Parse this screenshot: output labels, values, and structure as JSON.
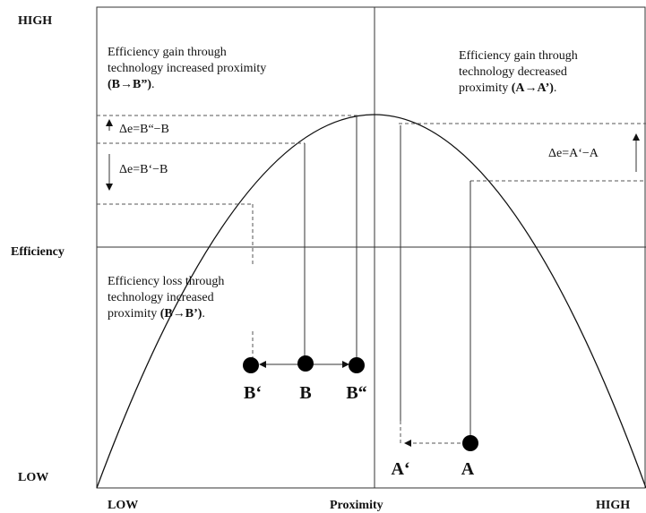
{
  "axes": {
    "y_high": "HIGH",
    "y_label": "Efficiency",
    "y_low": "LOW",
    "x_low": "LOW",
    "x_label": "Proximity",
    "x_high": "HIGH"
  },
  "quadrants": {
    "top_left": {
      "lines": [
        "Efficiency gain through",
        "technology increased proximity"
      ],
      "bold": "(B→B”)",
      "end": "."
    },
    "top_right": {
      "lines": [
        "Efficiency gain through",
        "technology decreased"
      ],
      "prefix": "proximity ",
      "bold": "(A→A’)",
      "end": "."
    },
    "bottom_left": {
      "lines": [
        "Efficiency loss through",
        "technology increased"
      ],
      "prefix": "proximity ",
      "bold": "(B→B’)",
      "end": "."
    }
  },
  "deltas": {
    "b_gain": "Δe=B“−B",
    "b_loss": "Δe=B‘−B",
    "a_gain": "Δe=A‘−A"
  },
  "points": {
    "b_prime": "B‘",
    "b": "B",
    "b_double": "B“",
    "a_prime": "A‘",
    "a": "A"
  }
}
